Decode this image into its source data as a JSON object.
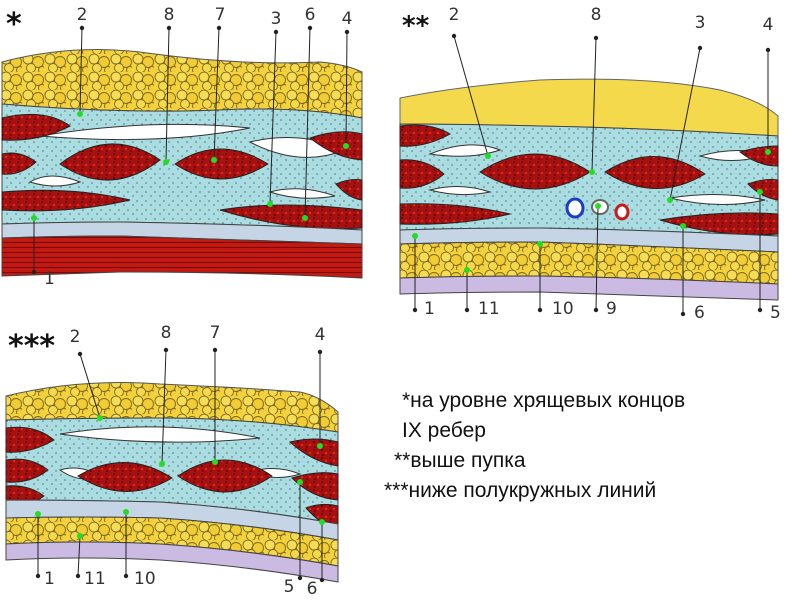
{
  "panels": {
    "p1": {
      "mark": "*",
      "labels": [
        "2",
        "8",
        "7",
        "3",
        "6",
        "4",
        "1"
      ]
    },
    "p2": {
      "mark": "**",
      "labels": [
        "2",
        "8",
        "3",
        "4",
        "1",
        "11",
        "10",
        "9",
        "6",
        "5"
      ]
    },
    "p3": {
      "mark": "***",
      "labels": [
        "2",
        "8",
        "7",
        "4",
        "1",
        "11",
        "10",
        "5",
        "6"
      ]
    }
  },
  "legend": {
    "line1": "*на уровне хрящевых концов",
    "line2": "IX ребер",
    "line3": "**выше пупка",
    "line4": "***ниже полукружных линий"
  },
  "colors": {
    "fat": "#f2cf3a",
    "fascia": "#a8dde0",
    "muscle": "#8b0c0c",
    "transversalis": "#b8c8e0",
    "peritoneum": "#c9b8e0",
    "pointer_dot": "#22dd22"
  }
}
